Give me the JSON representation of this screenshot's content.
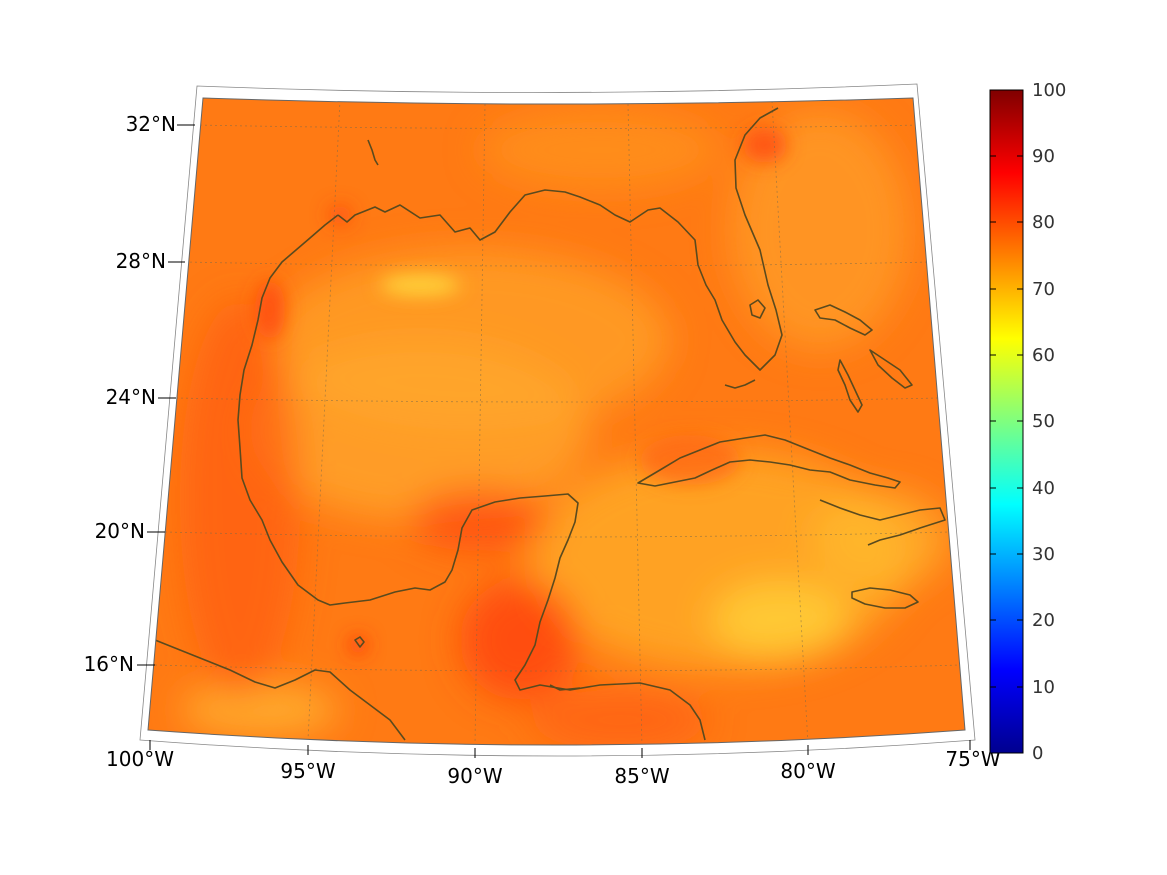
{
  "map": {
    "lat_labels": [
      "32°N",
      "28°N",
      "24°N",
      "20°N",
      "16°N"
    ],
    "lon_labels": [
      "100°W",
      "95°W",
      "90°W",
      "85°W",
      "80°W",
      "75°W"
    ],
    "lat_values": [
      32,
      28,
      24,
      20,
      16
    ],
    "lon_values": [
      -100,
      -95,
      -90,
      -85,
      -80,
      -75
    ],
    "coastline_color": "#5a4a1e",
    "colormap": "jet"
  },
  "colorbar": {
    "ticks": [
      "100",
      "90",
      "80",
      "70",
      "60",
      "50",
      "40",
      "30",
      "20",
      "10",
      "0"
    ],
    "min": 0,
    "max": 100
  }
}
